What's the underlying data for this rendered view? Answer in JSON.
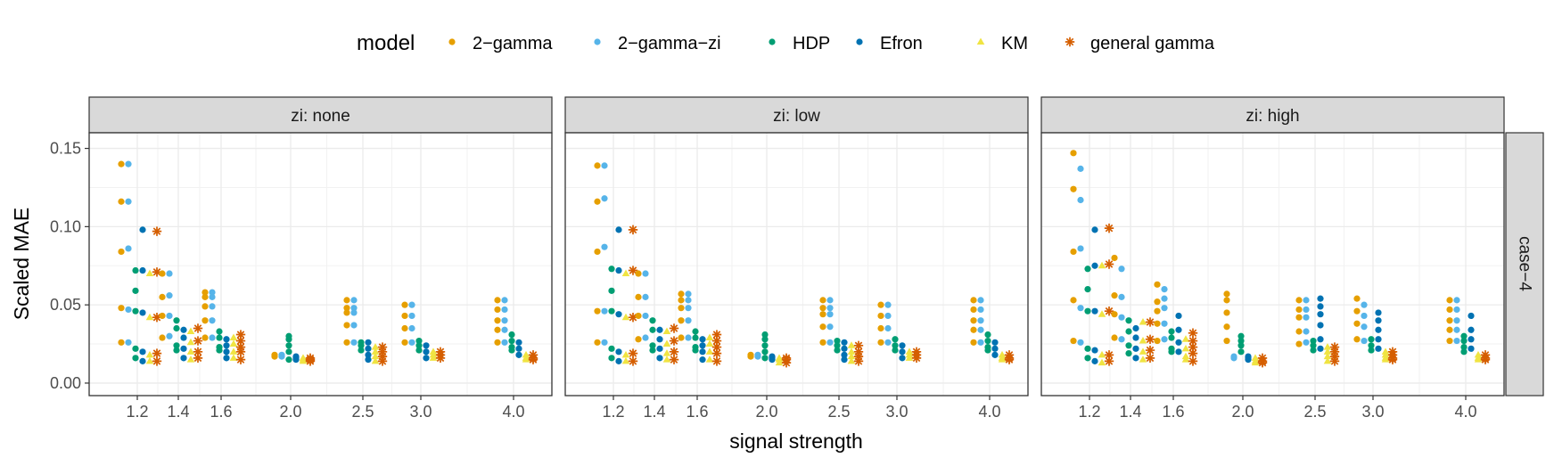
{
  "chart_data": {
    "type": "scatter",
    "legend": {
      "title": "model",
      "position": "top",
      "entries": [
        {
          "label": "2−gamma",
          "color": "#E69F00",
          "shape": "circle"
        },
        {
          "label": "2−gamma−zi",
          "color": "#56B4E9",
          "shape": "circle"
        },
        {
          "label": "HDP",
          "color": "#009E73",
          "shape": "circle"
        },
        {
          "label": "Efron",
          "color": "#0072B2",
          "shape": "circle"
        },
        {
          "label": "KM",
          "color": "#F0E442",
          "shape": "triangle"
        },
        {
          "label": "general gamma",
          "color": "#D55E00",
          "shape": "asterisk"
        }
      ]
    },
    "xlabel": "signal strength",
    "ylabel": "Scaled MAE",
    "x_ticks": [
      1.2,
      1.4,
      1.6,
      2.0,
      2.5,
      3.0,
      4.0
    ],
    "x_tick_labels": [
      "1.2",
      "1.4",
      "1.6",
      "2.0",
      "2.5",
      "3.0",
      "4.0"
    ],
    "ylim": [
      -0.008,
      0.16
    ],
    "y_ticks": [
      0.0,
      0.05,
      0.1,
      0.15
    ],
    "y_tick_labels": [
      "0.00",
      "0.05",
      "0.10",
      "0.15"
    ],
    "row_strip": "case−4",
    "panels": [
      {
        "strip": "zi: none",
        "data": {
          "1.2": [
            [
              0.14,
              0.116,
              0.084,
              0.048,
              0.026
            ],
            [
              0.14,
              0.116,
              0.086,
              0.047,
              0.026
            ],
            [
              0.072,
              0.059,
              0.046,
              0.022,
              0.016
            ],
            [
              0.098,
              0.072,
              0.045,
              0.02,
              0.014
            ],
            [
              0.07,
              0.042,
              0.018,
              0.014
            ],
            [
              0.097,
              0.071,
              0.042,
              0.019,
              0.014
            ]
          ],
          "1.4": [
            [
              0.07,
              0.055,
              0.043,
              0.029
            ],
            [
              0.07,
              0.056,
              0.043,
              0.03
            ],
            [
              0.04,
              0.035,
              0.024,
              0.021
            ],
            [
              0.034,
              0.029,
              0.022,
              0.016
            ],
            [
              0.033,
              0.026,
              0.02,
              0.015
            ],
            [
              0.035,
              0.027,
              0.02,
              0.016
            ]
          ],
          "1.6": [
            [
              0.058,
              0.055,
              0.049,
              0.04,
              0.029
            ],
            [
              0.058,
              0.055,
              0.049,
              0.04,
              0.029
            ],
            [
              0.033,
              0.029,
              0.023,
              0.021
            ],
            [
              0.028,
              0.024,
              0.02,
              0.016
            ],
            [
              0.029,
              0.025,
              0.02,
              0.016
            ],
            [
              0.031,
              0.027,
              0.023,
              0.02,
              0.015
            ]
          ],
          "2.0": [
            [
              0.018,
              0.017
            ],
            [
              0.018,
              0.017
            ],
            [
              0.03,
              0.028,
              0.024,
              0.02,
              0.015
            ],
            [
              0.017,
              0.016,
              0.015
            ],
            [
              0.016,
              0.015,
              0.014
            ],
            [
              0.016,
              0.015,
              0.014
            ]
          ],
          "2.5": [
            [
              0.053,
              0.048,
              0.045,
              0.037,
              0.026
            ],
            [
              0.053,
              0.048,
              0.045,
              0.037,
              0.026
            ],
            [
              0.026,
              0.024,
              0.021
            ],
            [
              0.026,
              0.022,
              0.018,
              0.015
            ],
            [
              0.023,
              0.02,
              0.017,
              0.014
            ],
            [
              0.023,
              0.02,
              0.017,
              0.014
            ]
          ],
          "3.0": [
            [
              0.05,
              0.043,
              0.035,
              0.026
            ],
            [
              0.05,
              0.043,
              0.035,
              0.026
            ],
            [
              0.027,
              0.024,
              0.021
            ],
            [
              0.024,
              0.02,
              0.016
            ],
            [
              0.02,
              0.018,
              0.016
            ],
            [
              0.02,
              0.018,
              0.016
            ]
          ],
          "4.0": [
            [
              0.053,
              0.047,
              0.04,
              0.034,
              0.026
            ],
            [
              0.053,
              0.047,
              0.04,
              0.034,
              0.026
            ],
            [
              0.031,
              0.027,
              0.023,
              0.021
            ],
            [
              0.026,
              0.022,
              0.018
            ],
            [
              0.018,
              0.016,
              0.015
            ],
            [
              0.018,
              0.016,
              0.015
            ]
          ]
        }
      },
      {
        "strip": "zi: low",
        "data": {
          "1.2": [
            [
              0.139,
              0.116,
              0.084,
              0.046,
              0.026
            ],
            [
              0.139,
              0.118,
              0.087,
              0.046,
              0.026
            ],
            [
              0.073,
              0.059,
              0.046,
              0.022,
              0.016
            ],
            [
              0.098,
              0.072,
              0.044,
              0.02,
              0.014
            ],
            [
              0.07,
              0.042,
              0.018,
              0.014
            ],
            [
              0.098,
              0.072,
              0.042,
              0.019,
              0.014
            ]
          ],
          "1.4": [
            [
              0.07,
              0.055,
              0.043,
              0.028
            ],
            [
              0.07,
              0.055,
              0.043,
              0.029
            ],
            [
              0.04,
              0.034,
              0.024,
              0.021
            ],
            [
              0.034,
              0.028,
              0.022,
              0.016
            ],
            [
              0.033,
              0.025,
              0.019,
              0.015
            ],
            [
              0.035,
              0.027,
              0.02,
              0.015
            ]
          ],
          "1.6": [
            [
              0.057,
              0.053,
              0.048,
              0.04,
              0.029
            ],
            [
              0.057,
              0.053,
              0.048,
              0.04,
              0.029
            ],
            [
              0.033,
              0.029,
              0.023,
              0.021
            ],
            [
              0.028,
              0.024,
              0.02,
              0.015
            ],
            [
              0.029,
              0.025,
              0.02,
              0.015
            ],
            [
              0.031,
              0.027,
              0.023,
              0.019,
              0.014
            ]
          ],
          "2.0": [
            [
              0.018,
              0.017
            ],
            [
              0.018,
              0.017
            ],
            [
              0.031,
              0.028,
              0.024,
              0.02,
              0.016
            ],
            [
              0.017,
              0.016,
              0.015
            ],
            [
              0.016,
              0.015,
              0.013
            ],
            [
              0.016,
              0.015,
              0.013
            ]
          ],
          "2.5": [
            [
              0.053,
              0.048,
              0.044,
              0.036,
              0.026
            ],
            [
              0.053,
              0.048,
              0.044,
              0.036,
              0.026
            ],
            [
              0.027,
              0.024,
              0.021
            ],
            [
              0.026,
              0.022,
              0.018,
              0.015
            ],
            [
              0.024,
              0.02,
              0.017,
              0.014
            ],
            [
              0.024,
              0.02,
              0.017,
              0.014
            ]
          ],
          "3.0": [
            [
              0.05,
              0.043,
              0.035,
              0.026
            ],
            [
              0.05,
              0.043,
              0.035,
              0.026
            ],
            [
              0.028,
              0.024,
              0.021
            ],
            [
              0.024,
              0.02,
              0.016
            ],
            [
              0.02,
              0.018,
              0.016
            ],
            [
              0.02,
              0.018,
              0.016
            ]
          ],
          "4.0": [
            [
              0.053,
              0.047,
              0.04,
              0.034,
              0.026
            ],
            [
              0.053,
              0.047,
              0.04,
              0.034,
              0.026
            ],
            [
              0.031,
              0.027,
              0.023,
              0.021
            ],
            [
              0.026,
              0.022,
              0.018
            ],
            [
              0.018,
              0.016,
              0.015
            ],
            [
              0.018,
              0.016,
              0.015
            ]
          ]
        }
      },
      {
        "strip": "zi: high",
        "data": {
          "1.2": [
            [
              0.147,
              0.124,
              0.084,
              0.053,
              0.027
            ],
            [
              0.137,
              0.117,
              0.086,
              0.048,
              0.026
            ],
            [
              0.073,
              0.06,
              0.046,
              0.022,
              0.016
            ],
            [
              0.098,
              0.075,
              0.046,
              0.021,
              0.014
            ],
            [
              0.075,
              0.044,
              0.018,
              0.013
            ],
            [
              0.099,
              0.076,
              0.046,
              0.018,
              0.014
            ]
          ],
          "1.4": [
            [
              0.08,
              0.056,
              0.044,
              0.029
            ],
            [
              0.073,
              0.055,
              0.042,
              0.028
            ],
            [
              0.04,
              0.033,
              0.024,
              0.019
            ],
            [
              0.035,
              0.029,
              0.022,
              0.016
            ],
            [
              0.039,
              0.027,
              0.02,
              0.015
            ],
            [
              0.039,
              0.028,
              0.021,
              0.016
            ]
          ],
          "1.6": [
            [
              0.063,
              0.052,
              0.046,
              0.038,
              0.027
            ],
            [
              0.06,
              0.054,
              0.048,
              0.038,
              0.028
            ],
            [
              0.033,
              0.029,
              0.022,
              0.02
            ],
            [
              0.043,
              0.034,
              0.026,
              0.02
            ],
            [
              0.028,
              0.022,
              0.017,
              0.015
            ],
            [
              0.032,
              0.027,
              0.023,
              0.019,
              0.014
            ]
          ],
          "2.0": [
            [
              0.057,
              0.053,
              0.045,
              0.036,
              0.027
            ],
            [
              0.017,
              0.016
            ],
            [
              0.03,
              0.027,
              0.024,
              0.02
            ],
            [
              0.017,
              0.016,
              0.015
            ],
            [
              0.016,
              0.014,
              0.013
            ],
            [
              0.016,
              0.014,
              0.013
            ]
          ],
          "2.5": [
            [
              0.053,
              0.047,
              0.042,
              0.033,
              0.025
            ],
            [
              0.053,
              0.047,
              0.042,
              0.033,
              0.026
            ],
            [
              0.027,
              0.024,
              0.021
            ],
            [
              0.054,
              0.049,
              0.044,
              0.037,
              0.028,
              0.022
            ],
            [
              0.023,
              0.02,
              0.017,
              0.014
            ],
            [
              0.023,
              0.02,
              0.017,
              0.014
            ]
          ],
          "3.0": [
            [
              0.054,
              0.046,
              0.038,
              0.028
            ],
            [
              0.05,
              0.043,
              0.036,
              0.027
            ],
            [
              0.028,
              0.024,
              0.021
            ],
            [
              0.045,
              0.04,
              0.034,
              0.028,
              0.022
            ],
            [
              0.02,
              0.018,
              0.016,
              0.015
            ],
            [
              0.02,
              0.018,
              0.016,
              0.015
            ]
          ],
          "4.0": [
            [
              0.053,
              0.047,
              0.04,
              0.034,
              0.027
            ],
            [
              0.053,
              0.047,
              0.04,
              0.034,
              0.027
            ],
            [
              0.03,
              0.027,
              0.023,
              0.02
            ],
            [
              0.043,
              0.034,
              0.028,
              0.022
            ],
            [
              0.018,
              0.016,
              0.015
            ],
            [
              0.018,
              0.016,
              0.015
            ]
          ]
        }
      }
    ]
  }
}
